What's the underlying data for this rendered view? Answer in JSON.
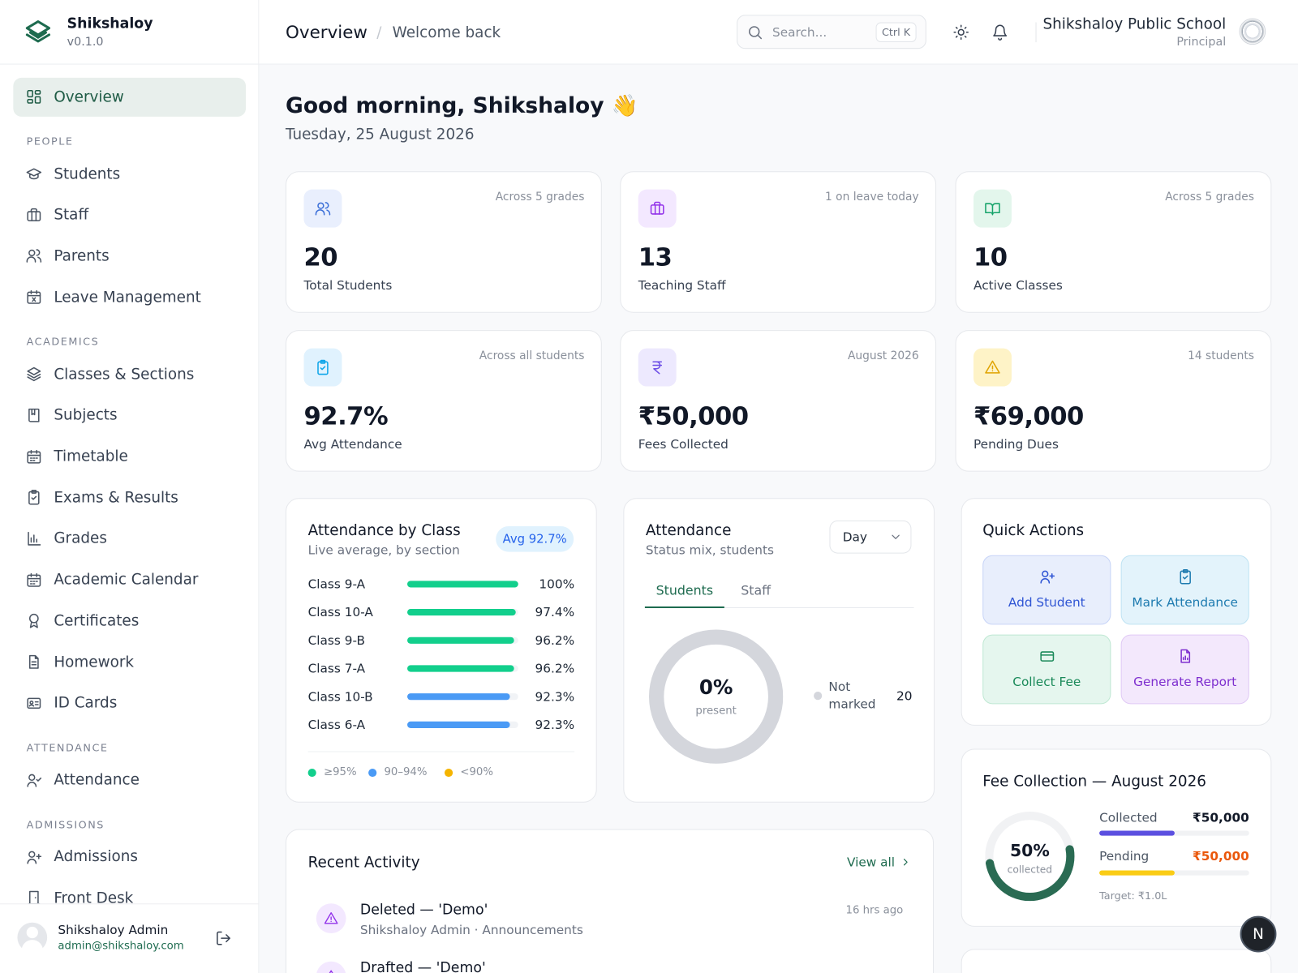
{
  "brand": {
    "name": "Shikshaloy",
    "version": "v0.1.0"
  },
  "header": {
    "title": "Overview",
    "separator": "/",
    "subtitle": "Welcome back",
    "search": "Search...",
    "shortcut": "Ctrl K",
    "school": "Shikshaloy Public School",
    "role": "Principal"
  },
  "sidebar": {
    "active": "Overview",
    "sections": [
      {
        "label": "PEOPLE",
        "items": [
          "Students",
          "Staff",
          "Parents",
          "Leave Management"
        ]
      },
      {
        "label": "ACADEMICS",
        "items": [
          "Classes & Sections",
          "Subjects",
          "Timetable",
          "Exams & Results",
          "Grades",
          "Academic Calendar",
          "Certificates",
          "Homework",
          "ID Cards"
        ]
      },
      {
        "label": "ATTENDANCE",
        "items": [
          "Attendance"
        ]
      },
      {
        "label": "ADMISSIONS",
        "items": [
          "Admissions",
          "Front Desk"
        ]
      }
    ],
    "user": {
      "name": "Shikshaloy Admin",
      "email": "admin@shikshaloy.com"
    }
  },
  "greeting": {
    "title": "Good morning, Shikshaloy 👋",
    "date": "Tuesday, 25 August 2026"
  },
  "stats": [
    {
      "note": "Across 5 grades",
      "value": "20",
      "label": "Total Students"
    },
    {
      "note": "1 on leave today",
      "value": "13",
      "label": "Teaching Staff"
    },
    {
      "note": "Across 5 grades",
      "value": "10",
      "label": "Active Classes"
    },
    {
      "note": "Across all students",
      "value": "92.7%",
      "label": "Avg Attendance"
    },
    {
      "note": "August 2026",
      "value": "₹50,000",
      "label": "Fees Collected"
    },
    {
      "note": "14 students",
      "value": "₹69,000",
      "label": "Pending Dues"
    }
  ],
  "attendance_by_class": {
    "title": "Attendance by Class",
    "subtitle": "Live average, by section",
    "badge": "Avg 92.7%",
    "rows": [
      {
        "name": "Class 9-A",
        "value": 100,
        "label": "100%",
        "color": "#12cf8c"
      },
      {
        "name": "Class 10-A",
        "value": 97.4,
        "label": "97.4%",
        "color": "#12cf8c"
      },
      {
        "name": "Class 9-B",
        "value": 96.2,
        "label": "96.2%",
        "color": "#12cf8c"
      },
      {
        "name": "Class 7-A",
        "value": 96.2,
        "label": "96.2%",
        "color": "#12cf8c"
      },
      {
        "name": "Class 10-B",
        "value": 92.3,
        "label": "92.3%",
        "color": "#4a9af5"
      },
      {
        "name": "Class 6-A",
        "value": 92.3,
        "label": "92.3%",
        "color": "#4a9af5"
      }
    ],
    "legend": [
      {
        "label": "≥95%",
        "color": "#12cf8c"
      },
      {
        "label": "90–94%",
        "color": "#4a9af5"
      },
      {
        "label": "<90%",
        "color": "#f5b400"
      }
    ]
  },
  "attendance": {
    "title": "Attendance",
    "subtitle": "Status mix, students",
    "period": "Day",
    "tabs": [
      "Students",
      "Staff"
    ],
    "present": 0,
    "present_label": "0%",
    "center_caption": "present",
    "legend": [
      {
        "label": "Not marked",
        "value": 20,
        "color": "#d4d6dc"
      }
    ]
  },
  "quick_actions": {
    "title": "Quick Actions",
    "items": [
      "Add Student",
      "Mark Attendance",
      "Collect Fee",
      "Generate Report"
    ]
  },
  "fee_collection": {
    "title": "Fee Collection — August 2026",
    "percent": 50,
    "percent_label": "50%",
    "caption": "collected",
    "rows": [
      {
        "label": "Collected",
        "amount": "₹50,000",
        "color": "#5b4fe0"
      },
      {
        "label": "Pending",
        "amount": "₹50,000",
        "color": "#facc15"
      }
    ],
    "target": "Target: ₹1.0L"
  },
  "recent_activity": {
    "title": "Recent Activity",
    "link": "View all",
    "items": [
      {
        "title": "Deleted — 'Demo'",
        "detail": "Shikshaloy Admin · Announcements",
        "time": "16 hrs ago"
      },
      {
        "title": "Drafted — 'Demo'"
      }
    ]
  },
  "fab": "N"
}
